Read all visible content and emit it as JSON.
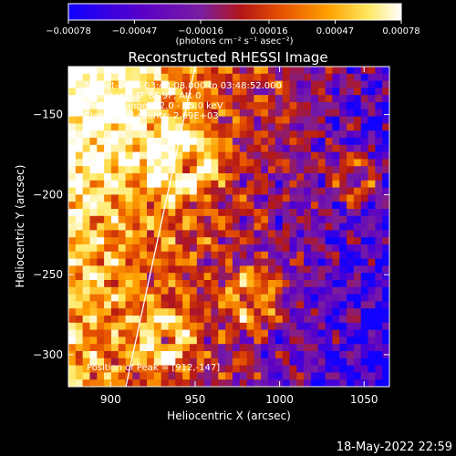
{
  "chart_data": {
    "type": "heatmap",
    "title": "Reconstructed RHESSI Image",
    "xlabel": "Heliocentric X (arcsec)",
    "ylabel": "Heliocentric Y (arcsec)",
    "xlim": [
      875,
      1065
    ],
    "ylim": [
      -320,
      -120
    ],
    "x_ticks": [
      900,
      950,
      1000,
      1050
    ],
    "x_tick_labels": [
      "900",
      "950",
      "1000",
      "1050"
    ],
    "y_ticks": [
      -150,
      -200,
      -250,
      -300
    ],
    "y_tick_labels": [
      "−150",
      "−200",
      "−250",
      "−300"
    ],
    "colorbar": {
      "range": [
        -0.00078,
        0.00078
      ],
      "ticks": [
        -0.00078,
        -0.00047,
        -0.00016,
        0.00016,
        0.00047,
        0.00078
      ],
      "tick_labels": [
        "−0.00078",
        "−0.00047",
        "−0.00016",
        "0.00016",
        "0.00047",
        "0.00078"
      ],
      "units_label": "(photons cm⁻² s⁻¹ asec⁻²)",
      "colormap": "blue-purple-red-yellow-white"
    },
    "grid": false,
    "grid_cols": 45,
    "grid_rows": 45,
    "peak": {
      "x": 912,
      "y": -147
    },
    "limb": [
      {
        "x": 909,
        "y": -320
      },
      {
        "x": 950,
        "y": -120
      }
    ],
    "annotations": {
      "time": "31-Oct-2014 03:43:08.000 to 03:48:52.000",
      "detectors": "Detectors: 3F 8F 9F, Att 0",
      "energy": "Energy Range: 12.0 - 25.0 keV",
      "clean": "Clean   Total counts: 2.69E+03",
      "peak": "Position of Peak = [912,-147]"
    }
  },
  "timestamp": "18-May-2022 22:59",
  "colors": {
    "background": "#000000",
    "text": "#ffffff",
    "colormap_stops": [
      "#1000ff",
      "#5a00c8",
      "#7a1ea0",
      "#b31616",
      "#e65200",
      "#ffa000",
      "#ffe860",
      "#ffffff"
    ]
  }
}
